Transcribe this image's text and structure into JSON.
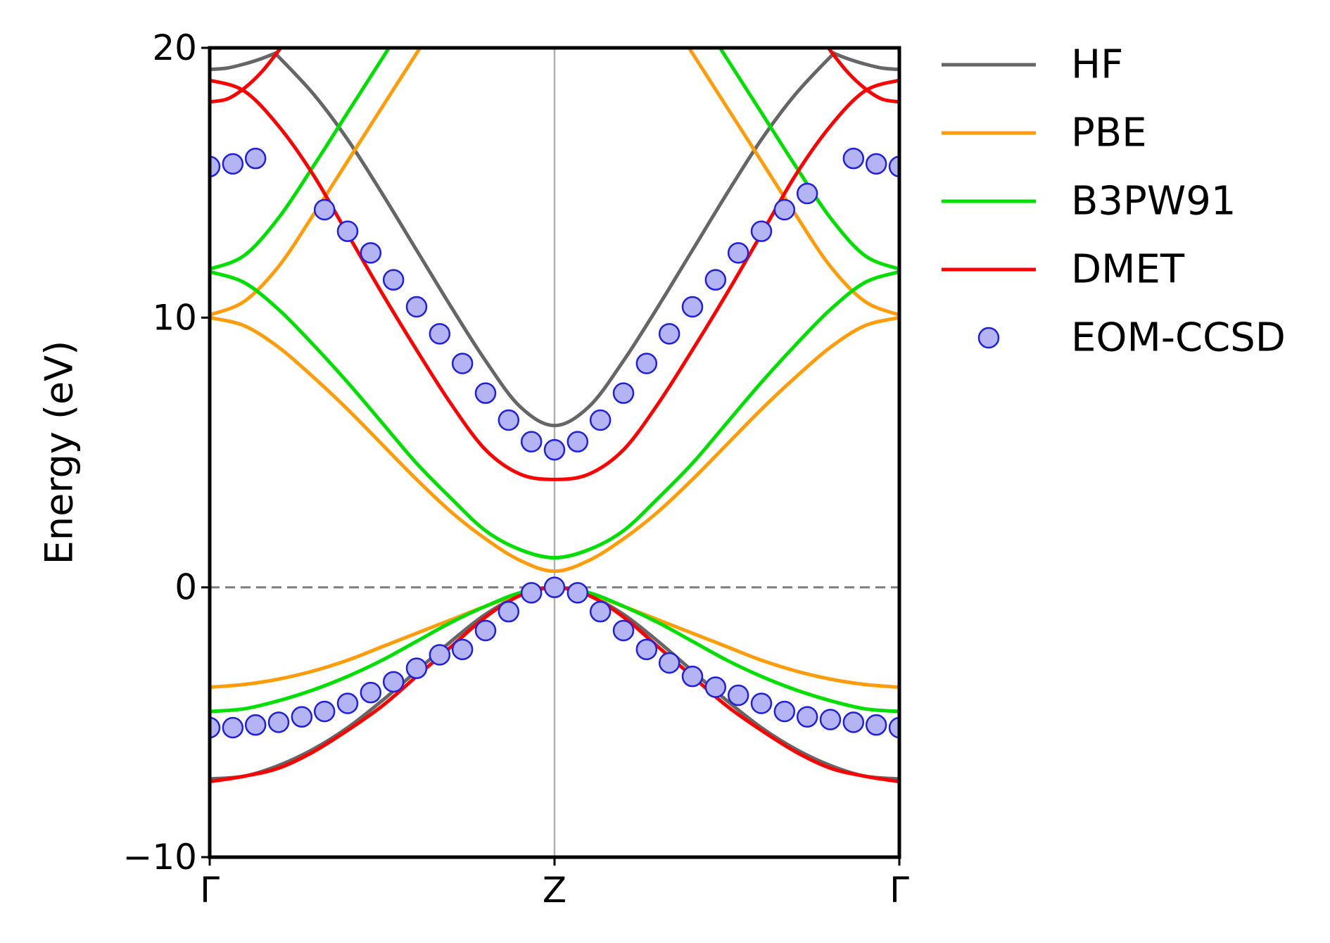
{
  "chart_data": {
    "type": "line",
    "title": "",
    "xlabel": "",
    "ylabel": "Energy (eV)",
    "ylim": [
      -10,
      20
    ],
    "xlim": [
      0,
      2
    ],
    "x_ticks": [
      {
        "value": 0,
        "label": "Γ"
      },
      {
        "value": 1,
        "label": "Z"
      },
      {
        "value": 2,
        "label": "Γ"
      }
    ],
    "y_ticks": [
      {
        "value": -10,
        "label": "−10"
      },
      {
        "value": 0,
        "label": "0"
      },
      {
        "value": 10,
        "label": "10"
      },
      {
        "value": 20,
        "label": "20"
      }
    ],
    "grid": false,
    "fermi_level": 0,
    "vertical_lines": [
      1
    ],
    "legend_position": "outside-right",
    "series": [
      {
        "name": "HF",
        "color": "#666666",
        "style": "line",
        "bands": [
          {
            "x": [
              0,
              0.1,
              0.2,
              0.3,
              0.4,
              0.5,
              0.6,
              0.7,
              0.8,
              0.9,
              1.0,
              1.1,
              1.2,
              1.3,
              1.4,
              1.5,
              1.6,
              1.7,
              1.8,
              1.9,
              2.0
            ],
            "y": [
              -7.1,
              -7.0,
              -6.6,
              -6.0,
              -5.2,
              -4.2,
              -3.1,
              -2.0,
              -1.0,
              -0.3,
              0.0,
              -0.3,
              -1.0,
              -2.0,
              -3.1,
              -4.2,
              -5.2,
              -6.0,
              -6.6,
              -7.0,
              -7.1
            ]
          },
          {
            "x": [
              0.19,
              0.3,
              0.4,
              0.5,
              0.6,
              0.7,
              0.8,
              0.9,
              1.0,
              1.1,
              1.2,
              1.3,
              1.4,
              1.5,
              1.6,
              1.7,
              1.81
            ],
            "y": [
              19.8,
              18.3,
              16.6,
              14.6,
              12.5,
              10.4,
              8.4,
              6.7,
              6.0,
              6.7,
              8.4,
              10.4,
              12.5,
              14.6,
              16.6,
              18.3,
              19.8
            ]
          },
          {
            "x": [
              0,
              0.05,
              0.1,
              0.15,
              0.19
            ],
            "y": [
              19.2,
              19.25,
              19.4,
              19.6,
              19.8
            ]
          },
          {
            "x": [
              1.81,
              1.85,
              1.9,
              1.95,
              2.0
            ],
            "y": [
              19.8,
              19.6,
              19.4,
              19.25,
              19.2
            ]
          }
        ]
      },
      {
        "name": "PBE",
        "color": "#ff9c0a",
        "style": "line",
        "bands": [
          {
            "x": [
              0,
              0.1,
              0.2,
              0.3,
              0.4,
              0.5,
              0.6,
              0.7,
              0.8,
              0.9,
              1.0,
              1.1,
              1.2,
              1.3,
              1.4,
              1.5,
              1.6,
              1.7,
              1.8,
              1.9,
              2.0
            ],
            "y": [
              -3.7,
              -3.6,
              -3.4,
              -3.1,
              -2.7,
              -2.2,
              -1.7,
              -1.2,
              -0.7,
              -0.25,
              0.0,
              -0.25,
              -0.7,
              -1.2,
              -1.7,
              -2.2,
              -2.7,
              -3.1,
              -3.4,
              -3.6,
              -3.7
            ]
          },
          {
            "x": [
              0,
              0.1,
              0.2,
              0.3,
              0.4,
              0.5,
              0.6,
              0.7,
              0.8,
              0.9,
              1.0,
              1.1,
              1.2,
              1.3,
              1.4,
              1.5,
              1.6,
              1.7,
              1.8,
              1.9,
              2.0
            ],
            "y": [
              10.0,
              9.7,
              8.9,
              7.8,
              6.6,
              5.3,
              4.0,
              2.8,
              1.8,
              1.0,
              0.6,
              1.0,
              1.8,
              2.8,
              4.0,
              5.3,
              6.6,
              7.8,
              8.9,
              9.7,
              10.0
            ]
          },
          {
            "x": [
              0,
              0.1,
              0.2,
              0.3,
              0.4,
              0.5,
              0.6,
              0.7,
              0.8
            ],
            "y": [
              10.1,
              10.6,
              11.9,
              13.8,
              15.8,
              17.8,
              19.8,
              21.8,
              23.5
            ]
          },
          {
            "x": [
              1.2,
              1.3,
              1.4,
              1.5,
              1.6,
              1.7,
              1.8,
              1.9,
              2.0
            ],
            "y": [
              23.5,
              21.8,
              19.8,
              17.8,
              15.8,
              13.8,
              11.9,
              10.6,
              10.1
            ]
          }
        ]
      },
      {
        "name": "B3PW91",
        "color": "#00e000",
        "style": "line",
        "bands": [
          {
            "x": [
              0,
              0.1,
              0.2,
              0.3,
              0.4,
              0.5,
              0.6,
              0.7,
              0.8,
              0.9,
              1.0,
              1.1,
              1.2,
              1.3,
              1.4,
              1.5,
              1.6,
              1.7,
              1.8,
              1.9,
              2.0
            ],
            "y": [
              -4.6,
              -4.5,
              -4.2,
              -3.8,
              -3.3,
              -2.7,
              -2.0,
              -1.3,
              -0.7,
              -0.2,
              0.0,
              -0.2,
              -0.7,
              -1.3,
              -2.0,
              -2.7,
              -3.3,
              -3.8,
              -4.2,
              -4.5,
              -4.6
            ]
          },
          {
            "x": [
              0,
              0.1,
              0.2,
              0.3,
              0.4,
              0.5,
              0.6,
              0.7,
              0.8,
              0.9,
              1.0,
              1.1,
              1.2,
              1.3,
              1.4,
              1.5,
              1.6,
              1.7,
              1.8,
              1.9,
              2.0
            ],
            "y": [
              11.7,
              11.3,
              10.3,
              9.0,
              7.6,
              6.1,
              4.6,
              3.3,
              2.1,
              1.4,
              1.1,
              1.4,
              2.1,
              3.3,
              4.6,
              6.1,
              7.6,
              9.0,
              10.3,
              11.3,
              11.7
            ]
          },
          {
            "x": [
              0,
              0.1,
              0.2,
              0.3,
              0.4,
              0.5,
              0.6,
              0.7
            ],
            "y": [
              11.8,
              12.3,
              13.7,
              15.6,
              17.6,
              19.6,
              21.6,
              23.5
            ]
          },
          {
            "x": [
              1.3,
              1.4,
              1.5,
              1.6,
              1.7,
              1.8,
              1.9,
              2.0
            ],
            "y": [
              23.5,
              21.6,
              19.6,
              17.6,
              15.6,
              13.7,
              12.3,
              11.8
            ]
          }
        ]
      },
      {
        "name": "DMET",
        "color": "#ff0000",
        "style": "line",
        "bands": [
          {
            "x": [
              0,
              0.1,
              0.2,
              0.3,
              0.4,
              0.5,
              0.6,
              0.7,
              0.8,
              0.9,
              1.0,
              1.1,
              1.2,
              1.3,
              1.4,
              1.5,
              1.6,
              1.7,
              1.8,
              1.9,
              2.0
            ],
            "y": [
              -7.2,
              -7.0,
              -6.7,
              -6.1,
              -5.3,
              -4.4,
              -3.3,
              -2.2,
              -1.1,
              -0.3,
              0.0,
              -0.3,
              -1.1,
              -2.2,
              -3.3,
              -4.4,
              -5.3,
              -6.1,
              -6.7,
              -7.0,
              -7.2
            ]
          },
          {
            "x": [
              0,
              0.1,
              0.2,
              0.3,
              0.4,
              0.5,
              0.6,
              0.7,
              0.8,
              0.9,
              1.0,
              1.1,
              1.2,
              1.3,
              1.4,
              1.5,
              1.6,
              1.7,
              1.8,
              1.9,
              2.0
            ],
            "y": [
              18.8,
              18.4,
              17.1,
              15.3,
              13.1,
              10.9,
              8.8,
              6.8,
              5.1,
              4.2,
              4.0,
              4.2,
              5.1,
              6.8,
              8.8,
              10.9,
              13.1,
              15.3,
              17.1,
              18.4,
              18.8
            ]
          },
          {
            "x": [
              0,
              0.05,
              0.1,
              0.15,
              0.2,
              0.25,
              0.3
            ],
            "y": [
              18.0,
              18.1,
              18.5,
              19.1,
              19.9,
              20.8,
              21.8
            ]
          },
          {
            "x": [
              1.7,
              1.75,
              1.8,
              1.85,
              1.9,
              1.95,
              2.0
            ],
            "y": [
              21.8,
              20.8,
              19.9,
              19.1,
              18.5,
              18.1,
              18.0
            ]
          }
        ]
      },
      {
        "name": "EOM-CCSD",
        "color": "#1f1fe0",
        "fill": "#b4b4f5",
        "style": "marker",
        "points": [
          {
            "x": 0.0,
            "y": -5.2
          },
          {
            "x": 0.067,
            "y": -5.2
          },
          {
            "x": 0.133,
            "y": -5.1
          },
          {
            "x": 0.2,
            "y": -5.0
          },
          {
            "x": 0.267,
            "y": -4.8
          },
          {
            "x": 0.333,
            "y": -4.6
          },
          {
            "x": 0.4,
            "y": -4.3
          },
          {
            "x": 0.467,
            "y": -3.9
          },
          {
            "x": 0.533,
            "y": -3.5
          },
          {
            "x": 0.6,
            "y": -3.0
          },
          {
            "x": 0.667,
            "y": -2.5
          },
          {
            "x": 0.733,
            "y": -2.3
          },
          {
            "x": 0.8,
            "y": -1.6
          },
          {
            "x": 0.867,
            "y": -0.9
          },
          {
            "x": 0.933,
            "y": -0.2
          },
          {
            "x": 1.0,
            "y": 0.0
          },
          {
            "x": 1.067,
            "y": -0.2
          },
          {
            "x": 1.133,
            "y": -0.9
          },
          {
            "x": 1.2,
            "y": -1.6
          },
          {
            "x": 1.267,
            "y": -2.3
          },
          {
            "x": 1.333,
            "y": -2.8
          },
          {
            "x": 1.4,
            "y": -3.3
          },
          {
            "x": 1.467,
            "y": -3.7
          },
          {
            "x": 1.533,
            "y": -4.0
          },
          {
            "x": 1.6,
            "y": -4.3
          },
          {
            "x": 1.667,
            "y": -4.6
          },
          {
            "x": 1.733,
            "y": -4.8
          },
          {
            "x": 1.8,
            "y": -4.9
          },
          {
            "x": 1.867,
            "y": -5.0
          },
          {
            "x": 1.933,
            "y": -5.1
          },
          {
            "x": 2.0,
            "y": -5.2
          },
          {
            "x": 0.0,
            "y": 15.6
          },
          {
            "x": 0.067,
            "y": 15.7
          },
          {
            "x": 0.133,
            "y": 15.9
          },
          {
            "x": 0.333,
            "y": 14.0
          },
          {
            "x": 0.4,
            "y": 13.2
          },
          {
            "x": 0.467,
            "y": 12.4
          },
          {
            "x": 0.533,
            "y": 11.4
          },
          {
            "x": 0.6,
            "y": 10.4
          },
          {
            "x": 0.667,
            "y": 9.4
          },
          {
            "x": 0.733,
            "y": 8.3
          },
          {
            "x": 0.8,
            "y": 7.2
          },
          {
            "x": 0.867,
            "y": 6.2
          },
          {
            "x": 0.933,
            "y": 5.4
          },
          {
            "x": 1.0,
            "y": 5.1
          },
          {
            "x": 1.067,
            "y": 5.4
          },
          {
            "x": 1.133,
            "y": 6.2
          },
          {
            "x": 1.2,
            "y": 7.2
          },
          {
            "x": 1.267,
            "y": 8.3
          },
          {
            "x": 1.333,
            "y": 9.4
          },
          {
            "x": 1.4,
            "y": 10.4
          },
          {
            "x": 1.467,
            "y": 11.4
          },
          {
            "x": 1.533,
            "y": 12.4
          },
          {
            "x": 1.6,
            "y": 13.2
          },
          {
            "x": 1.667,
            "y": 14.0
          },
          {
            "x": 1.733,
            "y": 14.6
          },
          {
            "x": 1.867,
            "y": 15.9
          },
          {
            "x": 1.933,
            "y": 15.7
          },
          {
            "x": 2.0,
            "y": 15.6
          }
        ]
      }
    ]
  }
}
